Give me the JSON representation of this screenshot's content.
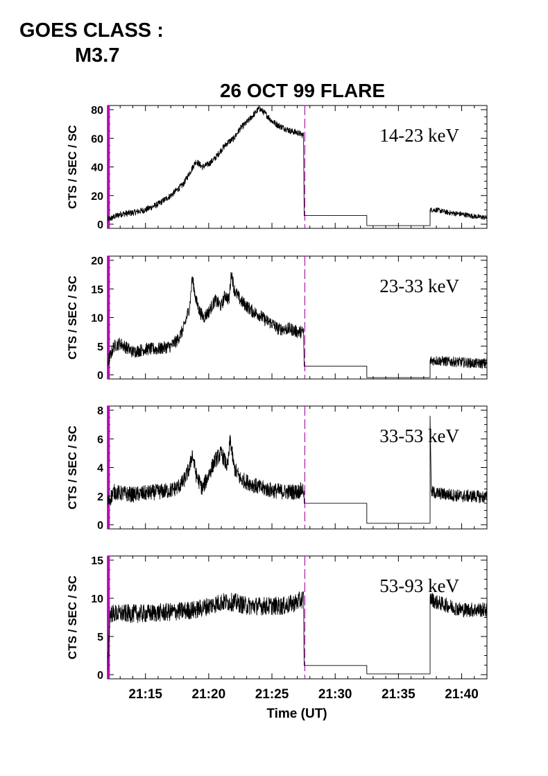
{
  "header": {
    "goes_label": "GOES CLASS :",
    "goes_value": "M3.7"
  },
  "chart_data": {
    "type": "line",
    "title": "26 OCT 99 FLARE",
    "xlabel": "Time (UT)",
    "xticklabels": [
      "21:15",
      "21:20",
      "21:25",
      "21:30",
      "21:35",
      "21:40"
    ],
    "xtick_minutes": [
      15,
      20,
      25,
      30,
      35,
      40
    ],
    "xlim_minutes_after_21h": [
      12,
      42
    ],
    "marker_lines": [
      {
        "time_min": 12.1,
        "style": "solid",
        "color": "#cc00cc"
      },
      {
        "time_min": 27.6,
        "style": "dashed",
        "color": "#cc00cc"
      }
    ],
    "panels": [
      {
        "band": "14-23 keV",
        "ylabel": "CTS / SEC / SC",
        "ylim": [
          0,
          80
        ],
        "yticks": [
          0,
          20,
          40,
          60,
          80
        ],
        "noise": 2.2,
        "x": [
          12.0,
          13.0,
          14.0,
          15.0,
          16.0,
          17.0,
          17.5,
          18.0,
          18.5,
          19.0,
          19.5,
          20.0,
          20.5,
          21.0,
          21.5,
          22.0,
          22.5,
          23.0,
          23.5,
          24.0,
          24.5,
          25.0,
          25.5,
          26.0,
          26.5,
          27.0,
          27.5,
          27.55,
          32.5,
          32.5,
          37.5,
          37.5,
          38.0,
          39.0,
          40.0,
          41.0,
          42.0
        ],
        "y": [
          3,
          7,
          8,
          10,
          14,
          20,
          24,
          28,
          36,
          44,
          40,
          42,
          46,
          52,
          57,
          60,
          67,
          71,
          76,
          81,
          77,
          72,
          69,
          67,
          65,
          64,
          62,
          6,
          6,
          -1,
          -1,
          10,
          10,
          8,
          7,
          5.5,
          4.5
        ],
        "noisy_until": 27.55,
        "noisy_from": 37.5
      },
      {
        "band": "23-33 keV",
        "ylabel": "CTS / SEC / SC",
        "ylim": [
          0,
          20
        ],
        "yticks": [
          0,
          5,
          10,
          15,
          20
        ],
        "noise": 1.1,
        "x": [
          12.0,
          12.5,
          13.0,
          14.0,
          15.0,
          16.0,
          17.0,
          17.5,
          18.0,
          18.5,
          18.7,
          19.0,
          19.3,
          19.6,
          20.0,
          20.5,
          21.0,
          21.3,
          21.6,
          21.8,
          22.0,
          22.5,
          23.0,
          23.5,
          24.0,
          24.5,
          25.0,
          25.5,
          26.0,
          26.5,
          27.0,
          27.5,
          27.55,
          32.5,
          32.5,
          37.5,
          37.5,
          38.0,
          39.0,
          40.0,
          41.0,
          42.0
        ],
        "y": [
          2,
          5,
          5.5,
          4,
          4.5,
          4.5,
          5,
          6,
          8,
          12,
          17,
          13,
          11,
          10,
          11,
          13,
          12,
          14,
          13,
          18,
          15,
          13,
          12,
          11,
          10.5,
          9.5,
          9,
          8,
          8,
          8,
          7.5,
          7.5,
          1.5,
          1.5,
          -0.5,
          -0.5,
          2.5,
          2.5,
          2.3,
          2.2,
          2,
          2
        ],
        "noisy_until": 27.55,
        "noisy_from": 37.5
      },
      {
        "band": "33-53 keV",
        "ylabel": "CTS / SEC / SC",
        "ylim": [
          0,
          8
        ],
        "yticks": [
          0,
          2,
          4,
          6,
          8
        ],
        "noise": 0.55,
        "x": [
          12.0,
          12.5,
          13.0,
          14.0,
          15.0,
          16.0,
          17.0,
          17.5,
          18.0,
          18.5,
          18.7,
          19.0,
          19.5,
          20.0,
          20.5,
          21.0,
          21.5,
          21.7,
          22.0,
          22.5,
          23.0,
          24.0,
          25.0,
          26.0,
          27.0,
          27.5,
          27.55,
          32.5,
          32.5,
          37.5,
          37.5,
          37.6,
          38.0,
          39.0,
          40.0,
          41.0,
          42.0
        ],
        "y": [
          1.5,
          2.3,
          2.2,
          2.1,
          2.2,
          2.3,
          2.4,
          2.6,
          3.0,
          4.0,
          5.0,
          3.5,
          2.5,
          3.5,
          4.5,
          5.0,
          4.0,
          6.0,
          4.0,
          3.2,
          3.0,
          2.6,
          2.4,
          2.3,
          2.3,
          2.5,
          1.5,
          1.5,
          0.1,
          0.1,
          7.6,
          2.3,
          2.2,
          2.1,
          2.0,
          2.0,
          1.9
        ],
        "noisy_until": 27.55,
        "noisy_from": 37.6
      },
      {
        "band": "53-93 keV",
        "ylabel": "CTS / SEC / SC",
        "ylim": [
          0,
          15
        ],
        "yticks": [
          0,
          5,
          10,
          15
        ],
        "noise": 1.2,
        "x": [
          12.0,
          12.2,
          13.0,
          15.0,
          17.0,
          19.0,
          20.0,
          21.0,
          22.0,
          23.0,
          24.0,
          25.0,
          26.0,
          27.0,
          27.5,
          27.55,
          32.5,
          32.5,
          37.5,
          37.5,
          38.0,
          39.0,
          40.0,
          41.0,
          42.0
        ],
        "y": [
          1,
          8,
          8,
          8,
          8.2,
          8.5,
          9,
          9.5,
          9.5,
          9,
          9,
          9,
          9,
          9.5,
          10,
          1.2,
          1.2,
          0.1,
          0.1,
          10,
          9.5,
          9,
          8.5,
          8.5,
          8.5
        ],
        "noisy_until": 27.55,
        "noisy_from": 37.5
      }
    ]
  }
}
